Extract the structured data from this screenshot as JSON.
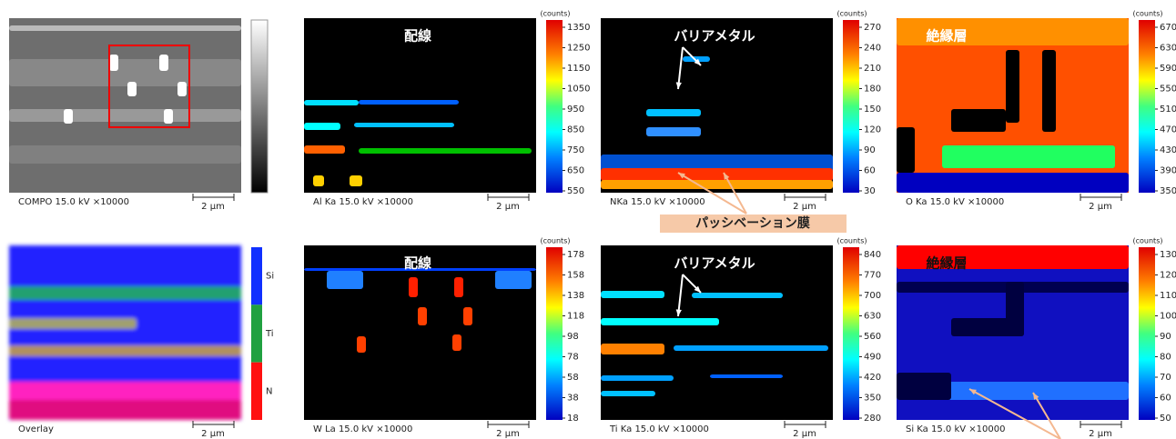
{
  "panels": [
    {
      "caption": "COMPO 15.0 kV ×10000",
      "scale": "2 μm",
      "colorbar": {
        "scale": "gray"
      }
    },
    {
      "caption": "Al Ka 15.0 kV ×10000",
      "scale": "2 μm",
      "label": "配線",
      "colorbar": {
        "scale": "jet",
        "unit": "(counts)",
        "range": [
          550,
          1350
        ],
        "ticks": [
          1350,
          1250,
          1150,
          1050,
          950,
          850,
          750,
          650,
          550
        ]
      }
    },
    {
      "caption": "NKa 15.0 kV ×10000",
      "scale": "2 μm",
      "label": "バリアメタル",
      "colorbar": {
        "scale": "jet",
        "unit": "(counts)",
        "range": [
          30,
          270
        ],
        "ticks": [
          270,
          240,
          210,
          180,
          150,
          120,
          90,
          60,
          30
        ]
      }
    },
    {
      "caption": "O Ka 15.0 kV ×10000",
      "scale": "2 μm",
      "label": "絶縁層",
      "colorbar": {
        "scale": "jet",
        "unit": "(counts)",
        "range": [
          350,
          670
        ],
        "ticks": [
          670,
          630,
          590,
          550,
          510,
          470,
          430,
          390,
          350
        ]
      }
    },
    {
      "caption": "Overlay",
      "scale": "2 μm",
      "colorbar": {
        "scale": "overlay",
        "labels": [
          "Si",
          "Ti",
          "N"
        ]
      }
    },
    {
      "caption": "W La 15.0 kV ×10000",
      "scale": "2 μm",
      "label": "配線",
      "colorbar": {
        "scale": "jet",
        "unit": "(counts)",
        "range": [
          18,
          178
        ],
        "ticks": [
          178,
          158,
          138,
          118,
          98,
          78,
          58,
          38,
          18
        ]
      }
    },
    {
      "caption": "Ti Ka 15.0 kV ×10000",
      "scale": "2 μm",
      "label": "バリアメタル",
      "colorbar": {
        "scale": "jet",
        "unit": "(counts)",
        "range": [
          280,
          840
        ],
        "ticks": [
          840,
          770,
          700,
          630,
          560,
          490,
          420,
          350,
          280
        ]
      }
    },
    {
      "caption": "Si Ka 15.0 kV ×10000",
      "scale": "2 μm",
      "label": "絶縁層",
      "colorbar": {
        "scale": "jet",
        "unit": "(counts)",
        "range": [
          50,
          130
        ],
        "ticks": [
          130,
          120,
          110,
          100,
          90,
          80,
          70,
          60,
          50
        ]
      }
    }
  ],
  "callout": "パッシベーション膜"
}
